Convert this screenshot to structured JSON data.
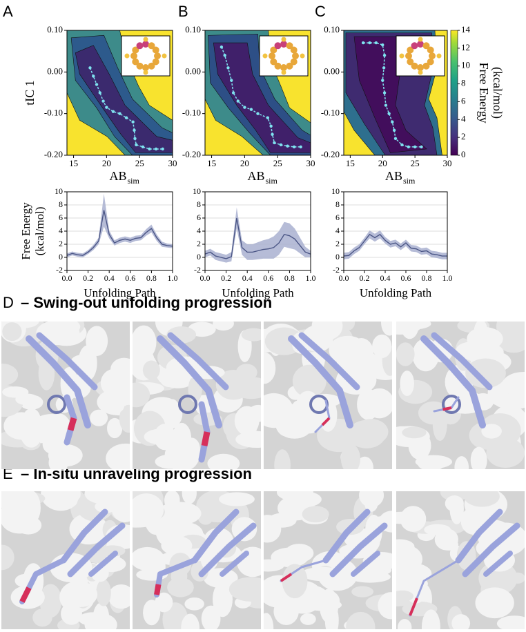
{
  "panel_labels": [
    "A",
    "B",
    "C",
    "D",
    "E"
  ],
  "headings": {
    "d": "– Swing-out unfolding progression",
    "e": "– In-situ unraveling progression"
  },
  "chart_data": [
    {
      "type": "contour",
      "xlabel": "AB",
      "xlabel_sub": "sim",
      "ylabel": "tIC 1",
      "xlim": [
        14,
        30
      ],
      "xticks": [
        15,
        20,
        25,
        30
      ],
      "ylim": [
        -0.2,
        0.1
      ],
      "yticks": [
        {
          "value": 0.1,
          "label": "0.10"
        },
        {
          "value": 0,
          "label": "0.00"
        },
        {
          "value": -0.1,
          "label": "-0.10"
        },
        {
          "value": -0.2,
          "label": "-0.20"
        }
      ],
      "path": {
        "color": "#7fe3f0",
        "x": [
          17.5,
          18,
          18.5,
          19,
          19.5,
          20,
          21,
          22,
          23,
          24,
          24.2,
          24.3,
          24.5,
          25.5,
          26.5,
          27.5,
          28.5
        ],
        "y": [
          0.01,
          -0.01,
          -0.03,
          -0.05,
          -0.07,
          -0.085,
          -0.095,
          -0.1,
          -0.11,
          -0.12,
          -0.14,
          -0.16,
          -0.175,
          -0.18,
          -0.185,
          -0.185,
          -0.185
        ]
      }
    },
    {
      "type": "contour",
      "xlabel": "AB",
      "xlabel_sub": "sim",
      "xlim": [
        14,
        30
      ],
      "xticks": [
        15,
        20,
        25,
        30
      ],
      "ylim": [
        -0.2,
        0.1
      ],
      "yticks": [
        {
          "value": 0.1,
          "label": "0.10"
        },
        {
          "value": 0,
          "label": "0.00"
        },
        {
          "value": -0.1,
          "label": "-0.10"
        },
        {
          "value": -0.2,
          "label": "-0.20"
        }
      ],
      "path": {
        "color": "#7fe3f0",
        "x": [
          16.5,
          17,
          17.5,
          18,
          18.3,
          19,
          20,
          21,
          22,
          23.5,
          24,
          24.2,
          24.5,
          25.5,
          26.5,
          27.5,
          28.5
        ],
        "y": [
          0.06,
          0.04,
          0.01,
          -0.02,
          -0.05,
          -0.07,
          -0.085,
          -0.09,
          -0.1,
          -0.11,
          -0.13,
          -0.15,
          -0.17,
          -0.175,
          -0.178,
          -0.18,
          -0.18
        ]
      }
    },
    {
      "type": "contour",
      "xlabel": "AB",
      "xlabel_sub": "sim",
      "xlim": [
        14,
        30
      ],
      "xticks": [
        15,
        20,
        25,
        30
      ],
      "ylim": [
        -0.2,
        0.1
      ],
      "yticks": [
        {
          "value": 0.1,
          "label": "0.10"
        },
        {
          "value": 0,
          "label": "0.00"
        },
        {
          "value": -0.1,
          "label": "-0.10"
        },
        {
          "value": -0.2,
          "label": "-0.20"
        }
      ],
      "path": {
        "color": "#7fe3f0",
        "x": [
          17,
          18,
          19,
          20,
          20.3,
          20.2,
          20,
          20.3,
          20.5,
          21,
          21.5,
          21.8,
          22,
          23,
          24,
          25,
          26
        ],
        "y": [
          0.07,
          0.07,
          0.07,
          0.065,
          0.04,
          0.01,
          -0.02,
          -0.05,
          -0.08,
          -0.1,
          -0.12,
          -0.14,
          -0.16,
          -0.175,
          -0.18,
          -0.18,
          -0.18
        ]
      },
      "colorbar": {
        "label": [
          "Free Energy",
          "(kcal/mol)"
        ],
        "lim": [
          0,
          14
        ],
        "ticks": [
          0,
          2,
          4,
          6,
          8,
          10,
          12,
          14
        ]
      }
    },
    {
      "type": "line",
      "xlabel": "Unfolding Path",
      "ylabel": [
        "Free Energy",
        "(kcal/mol)"
      ],
      "grid": true,
      "xlim": [
        0,
        1
      ],
      "xticks": [
        {
          "value": 0,
          "label": "0.0"
        },
        {
          "value": 0.2,
          "label": "0.2"
        },
        {
          "value": 0.4,
          "label": "0.4"
        },
        {
          "value": 0.6,
          "label": "0.6"
        },
        {
          "value": 0.8,
          "label": "0.8"
        },
        {
          "value": 1,
          "label": "1.0"
        }
      ],
      "ylim": [
        -2,
        10
      ],
      "yticks": [
        -2,
        0,
        2,
        4,
        6,
        8,
        10
      ],
      "x": [
        0,
        0.05,
        0.1,
        0.15,
        0.2,
        0.25,
        0.3,
        0.35,
        0.4,
        0.45,
        0.5,
        0.55,
        0.6,
        0.65,
        0.7,
        0.75,
        0.8,
        0.85,
        0.9,
        0.95,
        1
      ],
      "color": "#4a5585",
      "band_color": "#a9b0d0",
      "values": [
        0.3,
        0.6,
        0.4,
        0.3,
        0.8,
        1.5,
        2.5,
        7.2,
        3.5,
        2.2,
        2.6,
        2.8,
        2.6,
        2.9,
        3.0,
        3.8,
        4.4,
        3.0,
        2.0,
        1.8,
        1.7
      ],
      "upper": [
        0.6,
        0.9,
        0.7,
        0.6,
        1.1,
        1.9,
        3.0,
        9.7,
        4.1,
        2.6,
        3.0,
        3.2,
        3.0,
        3.3,
        3.4,
        4.3,
        5.0,
        3.5,
        2.4,
        2.1,
        2.0
      ],
      "lower": [
        0.0,
        0.3,
        0.1,
        0.0,
        0.5,
        1.1,
        2.0,
        4.7,
        2.9,
        1.8,
        2.2,
        2.4,
        2.2,
        2.5,
        2.6,
        3.3,
        3.8,
        2.5,
        1.6,
        1.5,
        1.4
      ]
    },
    {
      "type": "line",
      "xlabel": "Unfolding Path",
      "grid": true,
      "xlim": [
        0,
        1
      ],
      "xticks": [
        {
          "value": 0,
          "label": "0.0"
        },
        {
          "value": 0.2,
          "label": "0.2"
        },
        {
          "value": 0.4,
          "label": "0.4"
        },
        {
          "value": 0.6,
          "label": "0.6"
        },
        {
          "value": 0.8,
          "label": "0.8"
        },
        {
          "value": 1,
          "label": "1.0"
        }
      ],
      "ylim": [
        -2,
        10
      ],
      "yticks": [
        -2,
        0,
        2,
        4,
        6,
        8,
        10
      ],
      "x": [
        0,
        0.05,
        0.1,
        0.15,
        0.2,
        0.25,
        0.3,
        0.35,
        0.4,
        0.45,
        0.5,
        0.55,
        0.6,
        0.65,
        0.7,
        0.75,
        0.8,
        0.85,
        0.9,
        0.95,
        1
      ],
      "color": "#4a5585",
      "band_color": "#a9b0d0",
      "values": [
        0.5,
        0.8,
        0.2,
        0.0,
        -0.2,
        0.1,
        6.0,
        1.5,
        0.8,
        0.8,
        1.0,
        1.2,
        1.3,
        1.5,
        2.2,
        3.5,
        3.3,
        2.8,
        1.8,
        0.8,
        0.5
      ],
      "upper": [
        1.0,
        1.3,
        0.8,
        0.6,
        0.4,
        0.8,
        7.6,
        2.6,
        2.0,
        2.0,
        2.3,
        2.6,
        2.8,
        3.2,
        4.0,
        5.4,
        5.2,
        4.4,
        3.0,
        1.6,
        1.0
      ],
      "lower": [
        0.0,
        0.3,
        -0.4,
        -0.6,
        -0.8,
        -0.6,
        4.4,
        0.4,
        -0.4,
        -0.4,
        -0.3,
        -0.2,
        -0.2,
        -0.2,
        0.4,
        1.6,
        1.4,
        1.2,
        0.6,
        0.0,
        0.0
      ]
    },
    {
      "type": "line",
      "xlabel": "Unfolding Path",
      "grid": true,
      "xlim": [
        0,
        1
      ],
      "xticks": [
        {
          "value": 0,
          "label": "0.0"
        },
        {
          "value": 0.2,
          "label": "0.2"
        },
        {
          "value": 0.4,
          "label": "0.4"
        },
        {
          "value": 0.6,
          "label": "0.6"
        },
        {
          "value": 0.8,
          "label": "0.8"
        },
        {
          "value": 1,
          "label": "1.0"
        }
      ],
      "ylim": [
        -2,
        10
      ],
      "yticks": [
        -2,
        0,
        2,
        4,
        6,
        8,
        10
      ],
      "x": [
        0,
        0.05,
        0.1,
        0.15,
        0.2,
        0.25,
        0.3,
        0.35,
        0.4,
        0.45,
        0.5,
        0.55,
        0.6,
        0.65,
        0.7,
        0.75,
        0.8,
        0.85,
        0.9,
        0.95,
        1
      ],
      "color": "#4a5585",
      "band_color": "#a9b0d0",
      "values": [
        0.2,
        0.3,
        1.0,
        1.5,
        2.5,
        3.5,
        3.0,
        3.5,
        2.6,
        2.0,
        2.2,
        1.6,
        2.2,
        1.4,
        1.3,
        0.9,
        1.0,
        0.5,
        0.4,
        0.2,
        0.2
      ],
      "upper": [
        0.7,
        0.8,
        1.5,
        2.0,
        3.0,
        4.1,
        3.6,
        4.1,
        3.1,
        2.5,
        2.7,
        2.1,
        2.7,
        1.9,
        1.8,
        1.4,
        1.5,
        1.0,
        0.9,
        0.7,
        0.7
      ],
      "lower": [
        -0.3,
        -0.2,
        0.5,
        1.0,
        2.0,
        2.9,
        2.4,
        2.9,
        2.1,
        1.5,
        1.7,
        1.1,
        1.7,
        0.9,
        0.8,
        0.4,
        0.5,
        0.0,
        -0.1,
        -0.3,
        -0.3
      ]
    }
  ]
}
